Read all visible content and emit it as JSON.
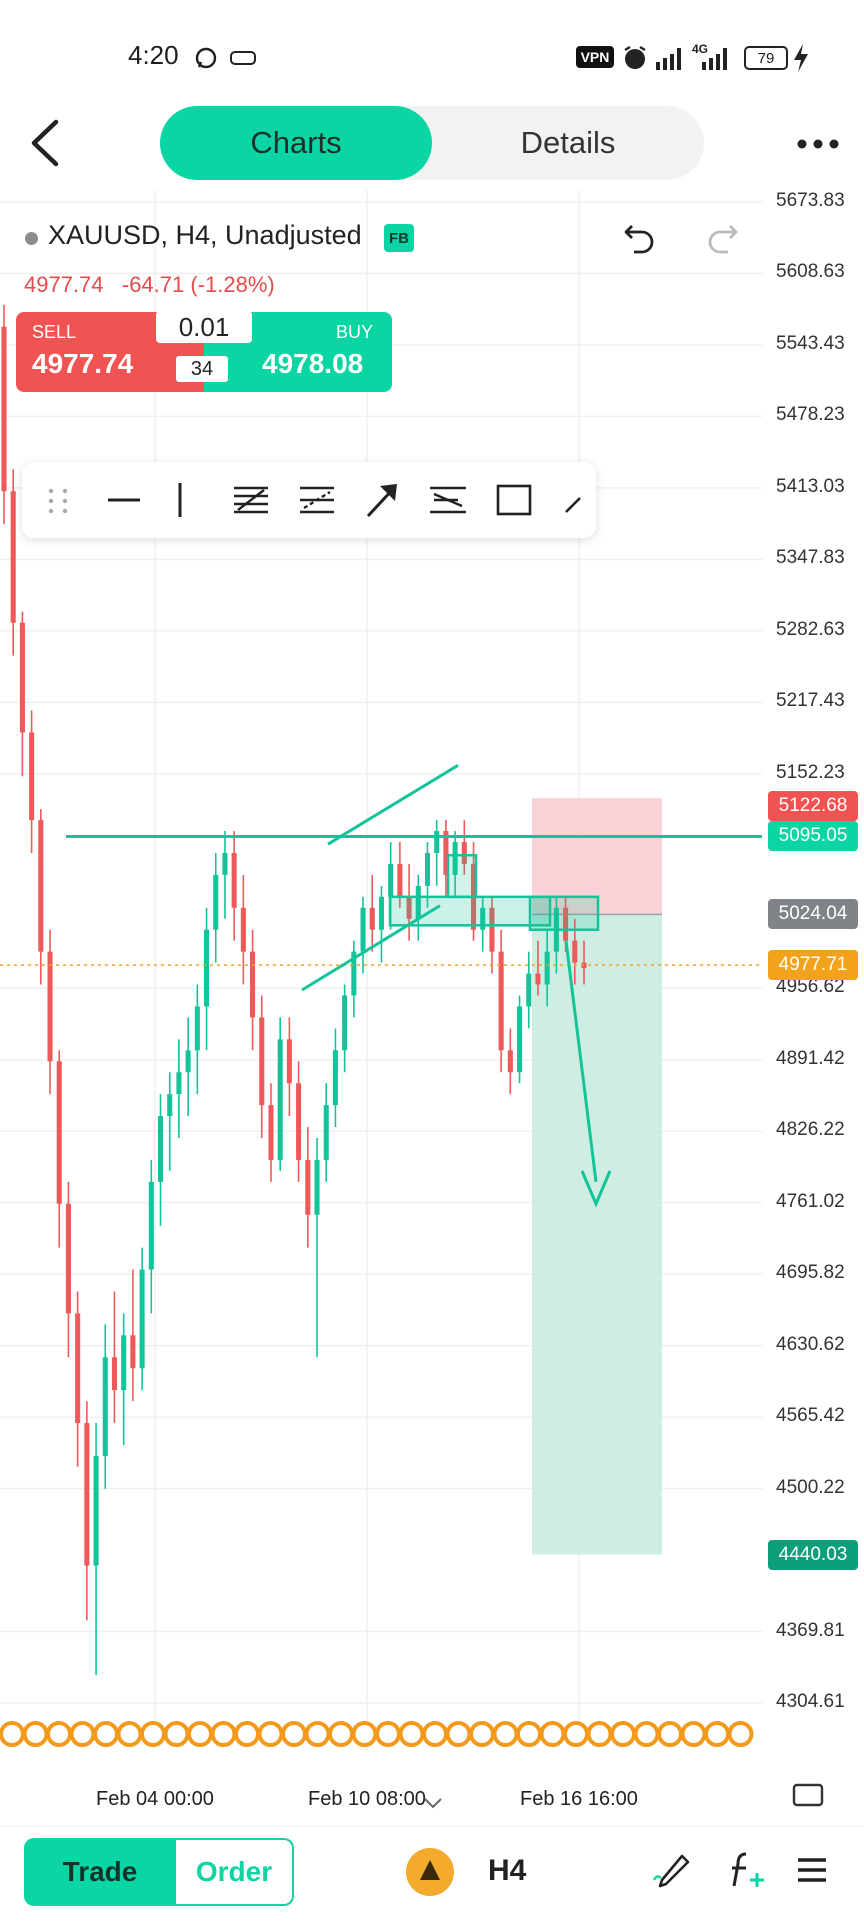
{
  "status_bar": {
    "time": "4:20",
    "vpn": "VPN",
    "network": "4G",
    "battery": "79"
  },
  "header": {
    "tabs": [
      {
        "label": "Charts",
        "active": true
      },
      {
        "label": "Details",
        "active": false
      }
    ]
  },
  "symbol": {
    "title": "XAUUSD, H4, Unadjusted",
    "badge": "FB",
    "price": "4977.74",
    "change": "-64.71 (-1.28%)"
  },
  "trade_widget": {
    "sell_label": "SELL",
    "sell_price": "4977.74",
    "buy_label": "BUY",
    "buy_price": "4978.08",
    "quantity": "0.01",
    "spread": "34"
  },
  "chart_data": {
    "type": "candlestick",
    "symbol": "XAUUSD",
    "timeframe": "H4",
    "y_ticks": [
      "5673.83",
      "5608.63",
      "5543.43",
      "5478.23",
      "5413.03",
      "5347.83",
      "5282.63",
      "5217.43",
      "5152.23",
      "4956.62",
      "4891.42",
      "4826.22",
      "4761.02",
      "4695.82",
      "4630.62",
      "4565.42",
      "4500.22",
      "4369.81",
      "4304.61"
    ],
    "ylim": [
      4280,
      5690
    ],
    "x_ticks": [
      "Feb 04 00:00",
      "Feb 10 08:00",
      "Feb 16 16:00"
    ],
    "price_badges": [
      {
        "value": "5122.68",
        "color": "#f15353"
      },
      {
        "value": "5095.05",
        "color": "#0bd5a2"
      },
      {
        "value": "5024.04",
        "color": "#808489"
      },
      {
        "value": "4977.71",
        "color": "#f2a31b"
      },
      {
        "value": "4440.03",
        "color": "#0d9f7a"
      }
    ],
    "horizontal_line": 5095.05,
    "current_price": 4977.71,
    "position": {
      "entry": 5024.04,
      "stop": 5122.68,
      "target": 4440.03
    },
    "up_color": "#13c49a",
    "down_color": "#ee5a5a",
    "candles": [
      [
        5560,
        5580,
        5380,
        5410
      ],
      [
        5410,
        5430,
        5260,
        5290
      ],
      [
        5290,
        5300,
        5150,
        5190
      ],
      [
        5190,
        5210,
        5080,
        5110
      ],
      [
        5110,
        5120,
        4960,
        4990
      ],
      [
        4990,
        5010,
        4860,
        4890
      ],
      [
        4890,
        4900,
        4720,
        4760
      ],
      [
        4760,
        4780,
        4620,
        4660
      ],
      [
        4660,
        4680,
        4520,
        4560
      ],
      [
        4560,
        4580,
        4380,
        4430
      ],
      [
        4430,
        4560,
        4330,
        4530
      ],
      [
        4530,
        4650,
        4500,
        4620
      ],
      [
        4620,
        4680,
        4560,
        4590
      ],
      [
        4590,
        4660,
        4540,
        4640
      ],
      [
        4640,
        4700,
        4580,
        4610
      ],
      [
        4610,
        4720,
        4590,
        4700
      ],
      [
        4700,
        4800,
        4660,
        4780
      ],
      [
        4780,
        4860,
        4740,
        4840
      ],
      [
        4840,
        4880,
        4790,
        4860
      ],
      [
        4860,
        4910,
        4820,
        4880
      ],
      [
        4880,
        4930,
        4840,
        4900
      ],
      [
        4900,
        4960,
        4860,
        4940
      ],
      [
        4940,
        5030,
        4900,
        5010
      ],
      [
        5010,
        5080,
        4980,
        5060
      ],
      [
        5060,
        5100,
        5020,
        5080
      ],
      [
        5080,
        5100,
        5000,
        5030
      ],
      [
        5030,
        5060,
        4960,
        4990
      ],
      [
        4990,
        5010,
        4900,
        4930
      ],
      [
        4930,
        4950,
        4820,
        4850
      ],
      [
        4850,
        4870,
        4780,
        4800
      ],
      [
        4800,
        4930,
        4790,
        4910
      ],
      [
        4910,
        4930,
        4840,
        4870
      ],
      [
        4870,
        4890,
        4780,
        4800
      ],
      [
        4800,
        4830,
        4720,
        4750
      ],
      [
        4750,
        4820,
        4620,
        4800
      ],
      [
        4800,
        4870,
        4780,
        4850
      ],
      [
        4850,
        4920,
        4830,
        4900
      ],
      [
        4900,
        4960,
        4880,
        4950
      ],
      [
        4950,
        5000,
        4930,
        4990
      ],
      [
        4990,
        5040,
        4970,
        5030
      ],
      [
        5030,
        5060,
        4990,
        5010
      ],
      [
        5010,
        5050,
        4980,
        5040
      ],
      [
        5040,
        5090,
        5010,
        5070
      ],
      [
        5070,
        5090,
        5030,
        5040
      ],
      [
        5040,
        5070,
        5000,
        5020
      ],
      [
        5020,
        5060,
        5000,
        5050
      ],
      [
        5050,
        5090,
        5030,
        5080
      ],
      [
        5080,
        5110,
        5050,
        5100
      ],
      [
        5100,
        5110,
        5040,
        5060
      ],
      [
        5060,
        5100,
        5040,
        5090
      ],
      [
        5090,
        5110,
        5060,
        5070
      ],
      [
        5070,
        5090,
        5000,
        5010
      ],
      [
        5010,
        5040,
        4990,
        5030
      ],
      [
        5030,
        5040,
        4970,
        4990
      ],
      [
        4990,
        5010,
        4880,
        4900
      ],
      [
        4900,
        4920,
        4860,
        4880
      ],
      [
        4880,
        4950,
        4870,
        4940
      ],
      [
        4940,
        4990,
        4920,
        4970
      ],
      [
        4970,
        5000,
        4950,
        4960
      ],
      [
        4960,
        5010,
        4940,
        4990
      ],
      [
        4990,
        5040,
        4970,
        5030
      ],
      [
        5030,
        5040,
        4990,
        5000
      ],
      [
        5000,
        5020,
        4960,
        4980
      ],
      [
        4980,
        5000,
        4960,
        4975
      ]
    ]
  },
  "x_axis": {
    "ticks": [
      "Feb 04 00:00",
      "Feb 10 08:00",
      "Feb 16 16:00"
    ]
  },
  "bottom_bar": {
    "trade_label": "Trade",
    "order_label": "Order",
    "timeframe": "H4"
  }
}
